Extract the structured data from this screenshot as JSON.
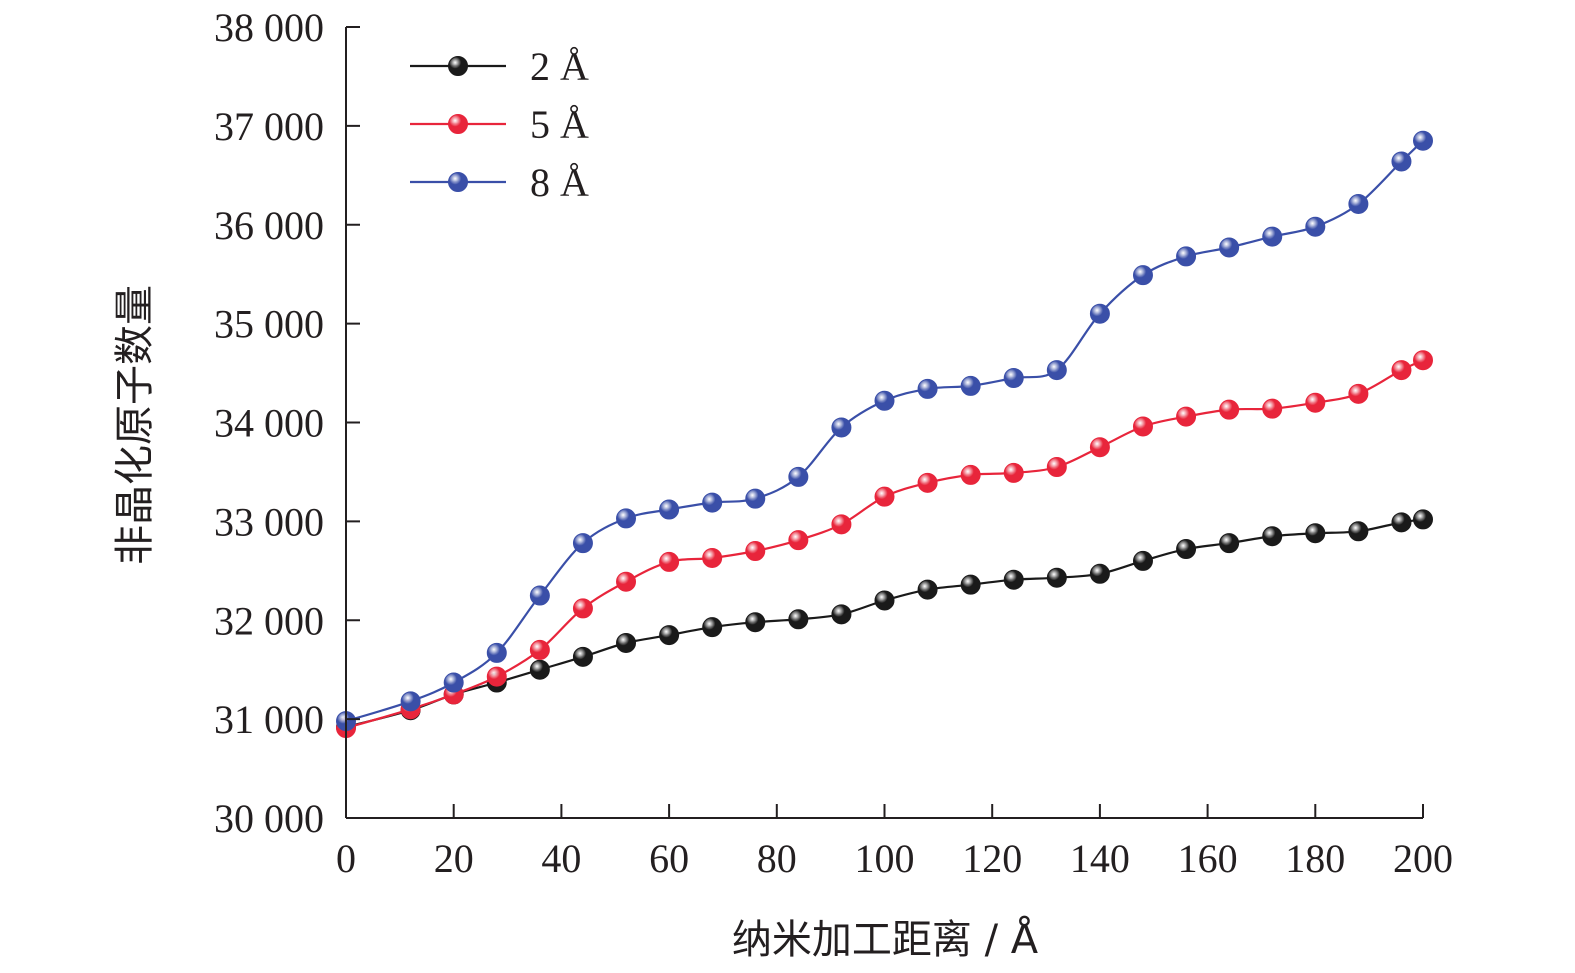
{
  "chart_data": {
    "type": "line",
    "title": "",
    "xlabel": "纳米加工距离 / Å",
    "ylabel": "非晶化原子数量",
    "xlim": [
      0,
      200
    ],
    "ylim": [
      30000,
      38000
    ],
    "x_ticks": [
      0,
      20,
      40,
      60,
      80,
      100,
      120,
      140,
      160,
      180,
      200
    ],
    "x_tick_labels": [
      "0",
      "20",
      "40",
      "60",
      "80",
      "100",
      "120",
      "140",
      "160",
      "180",
      "200"
    ],
    "y_ticks": [
      30000,
      31000,
      32000,
      33000,
      34000,
      35000,
      36000,
      37000,
      38000
    ],
    "y_tick_labels": [
      "30 000",
      "31 000",
      "32 000",
      "33 000",
      "34 000",
      "35 000",
      "36 000",
      "37 000",
      "38 000"
    ],
    "grid": false,
    "legend_position": "top-left",
    "x": [
      0,
      12,
      20,
      28,
      36,
      44,
      52,
      60,
      68,
      76,
      84,
      92,
      100,
      108,
      116,
      124,
      132,
      140,
      148,
      156,
      164,
      172,
      180,
      188,
      196,
      200
    ],
    "series": [
      {
        "name": "2 Å",
        "color": "#1a1a1a",
        "values": [
          30920,
          31090,
          31250,
          31370,
          31500,
          31630,
          31770,
          31850,
          31930,
          31980,
          32010,
          32060,
          32200,
          32310,
          32360,
          32410,
          32430,
          32470,
          32600,
          32720,
          32780,
          32850,
          32880,
          32900,
          32990,
          33020
        ]
      },
      {
        "name": "5 Å",
        "color": "#e8253b",
        "values": [
          30910,
          31100,
          31250,
          31430,
          31700,
          32120,
          32390,
          32590,
          32630,
          32700,
          32810,
          32970,
          33250,
          33390,
          33470,
          33490,
          33550,
          33750,
          33960,
          34060,
          34130,
          34140,
          34200,
          34290,
          34530,
          34630
        ]
      },
      {
        "name": "8 Å",
        "color": "#3a4fa8",
        "values": [
          30980,
          31180,
          31370,
          31670,
          32250,
          32780,
          33030,
          33120,
          33190,
          33230,
          33450,
          33950,
          34220,
          34340,
          34370,
          34450,
          34530,
          35100,
          35490,
          35680,
          35770,
          35880,
          35980,
          36210,
          36640,
          36850
        ]
      }
    ]
  }
}
